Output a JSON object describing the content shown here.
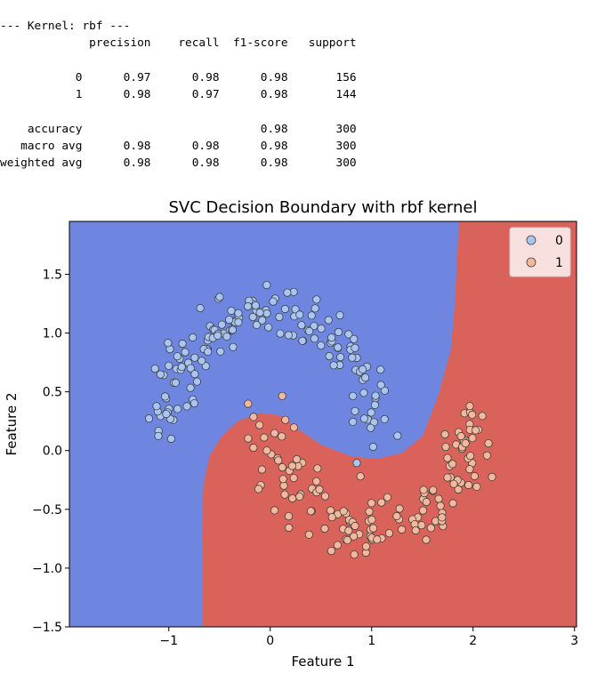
{
  "report": {
    "header": "--- Kernel: rbf ---",
    "columns": [
      "precision",
      "recall",
      "f1-score",
      "support"
    ],
    "rows": [
      {
        "label": "0",
        "precision": "0.97",
        "recall": "0.98",
        "f1": "0.98",
        "support": "156"
      },
      {
        "label": "1",
        "precision": "0.98",
        "recall": "0.97",
        "f1": "0.98",
        "support": "144"
      }
    ],
    "summary": [
      {
        "label": "accuracy",
        "precision": "",
        "recall": "",
        "f1": "0.98",
        "support": "300"
      },
      {
        "label": "macro avg",
        "precision": "0.98",
        "recall": "0.98",
        "f1": "0.98",
        "support": "300"
      },
      {
        "label": "weighted avg",
        "precision": "0.98",
        "recall": "0.98",
        "f1": "0.98",
        "support": "300"
      }
    ]
  },
  "chart_data": {
    "type": "scatter",
    "title": "SVC Decision Boundary with rbf kernel",
    "xlabel": "Feature 1",
    "ylabel": "Feature 2",
    "xlim": [
      -1.98,
      3.02
    ],
    "ylim": [
      -1.5,
      1.95
    ],
    "xticks": [
      -1,
      0,
      1,
      2,
      3
    ],
    "xtick_labels": [
      "−1",
      "0",
      "1",
      "2",
      "3"
    ],
    "yticks": [
      -1.5,
      -1.0,
      -0.5,
      0.0,
      0.5,
      1.0,
      1.5
    ],
    "ytick_labels": [
      "−1.5",
      "−1.0",
      "−0.5",
      "0.0",
      "0.5",
      "1.0",
      "1.5"
    ],
    "legend": {
      "placement": "top-right",
      "entries": [
        "0",
        "1"
      ]
    },
    "grid": false,
    "colors": {
      "region_0": "#6f86e0",
      "region_1": "#d9635b",
      "point_0": "#a9c6f3",
      "point_1": "#f4b99c",
      "edge": "#404040"
    },
    "region_0_boundary": [
      [
        -0.67,
        -1.5
      ],
      [
        -0.67,
        -0.8
      ],
      [
        -0.66,
        -0.3
      ],
      [
        -0.6,
        -0.05
      ],
      [
        -0.48,
        0.12
      ],
      [
        -0.32,
        0.25
      ],
      [
        -0.1,
        0.32
      ],
      [
        0.1,
        0.3
      ],
      [
        0.3,
        0.17
      ],
      [
        0.5,
        0.05
      ],
      [
        0.8,
        -0.05
      ],
      [
        1.05,
        -0.07
      ],
      [
        1.3,
        -0.02
      ],
      [
        1.5,
        0.12
      ],
      [
        1.65,
        0.45
      ],
      [
        1.78,
        0.85
      ],
      [
        1.82,
        1.25
      ],
      [
        1.84,
        1.6
      ],
      [
        1.86,
        1.95
      ]
    ],
    "series": [
      {
        "name": "0",
        "count": 156,
        "arc": {
          "cx": 0.0,
          "cy": 0.18,
          "r": 1.0,
          "angle_from": 0,
          "angle_to": 180,
          "noise": 0.12
        }
      },
      {
        "name": "1",
        "count": 144,
        "arc": {
          "cx": 1.0,
          "cy": 0.32,
          "r": 1.0,
          "angle_from": 180,
          "angle_to": 360,
          "noise": 0.12
        }
      }
    ]
  }
}
